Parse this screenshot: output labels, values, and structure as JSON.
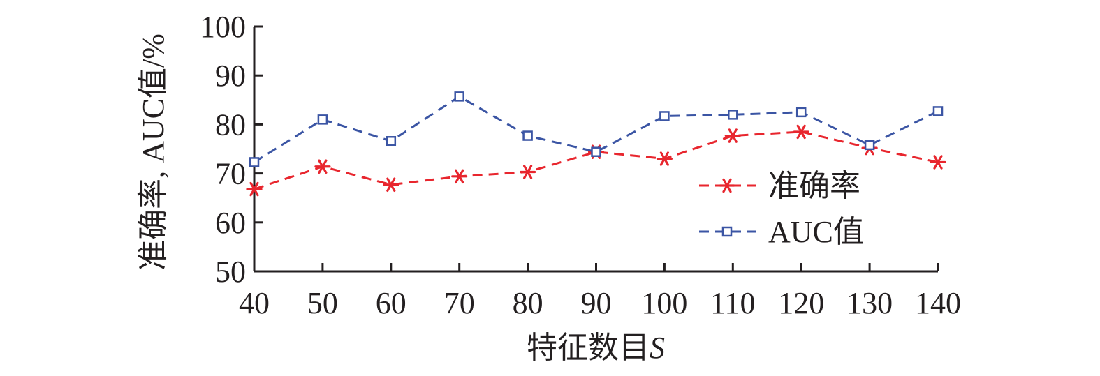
{
  "chart_data": {
    "type": "line",
    "xlabel": "特征数目",
    "xlabel_var": "S",
    "ylabel": "准确率, AUC值/%",
    "x": [
      40,
      50,
      60,
      70,
      80,
      90,
      100,
      110,
      120,
      130,
      140
    ],
    "xlim": [
      40,
      140
    ],
    "ylim": [
      50,
      100
    ],
    "yticks": [
      50,
      60,
      70,
      80,
      90,
      100
    ],
    "xticks": [
      40,
      50,
      60,
      70,
      80,
      90,
      100,
      110,
      120,
      130,
      140
    ],
    "grid": false,
    "legend_position": "right",
    "series": [
      {
        "name": "准确率",
        "color": "#e8262e",
        "marker": "asterisk",
        "line": "dashed",
        "values": [
          66.8,
          71.4,
          67.7,
          69.4,
          70.3,
          74.4,
          73.0,
          77.7,
          78.5,
          75.2,
          72.3
        ]
      },
      {
        "name": "AUC值",
        "color": "#3b55a4",
        "marker": "square",
        "line": "dashed",
        "values": [
          72.3,
          81.0,
          76.6,
          85.7,
          77.7,
          74.4,
          81.7,
          82.0,
          82.5,
          75.8,
          82.7
        ]
      }
    ]
  }
}
